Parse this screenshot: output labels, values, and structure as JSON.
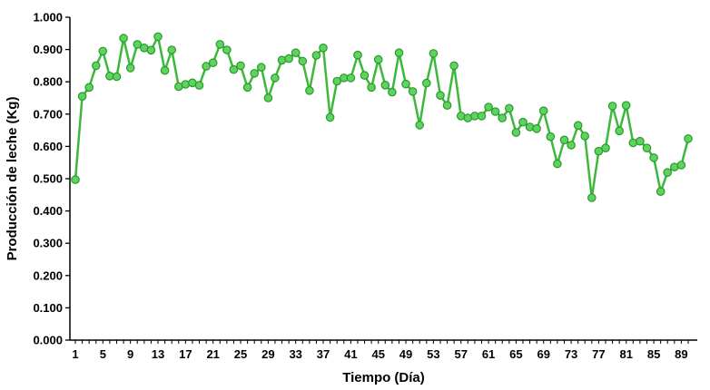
{
  "chart_data": {
    "type": "line",
    "title": "",
    "xlabel": "Tiempo (Día)",
    "ylabel": "Producción de leche (Kg)",
    "xlim": [
      1,
      90
    ],
    "ylim": [
      0,
      1.0
    ],
    "x_ticks": [
      1,
      5,
      9,
      13,
      17,
      21,
      25,
      29,
      33,
      37,
      41,
      45,
      49,
      53,
      57,
      61,
      65,
      69,
      73,
      77,
      81,
      85,
      89
    ],
    "y_ticks": [
      "0.000",
      "0.100",
      "0.200",
      "0.300",
      "0.400",
      "0.500",
      "0.600",
      "0.700",
      "0.800",
      "0.900",
      "1.000"
    ],
    "grid": false,
    "color": "#3cb83c",
    "series": [
      {
        "x": [
          1,
          2,
          3,
          4,
          5,
          6,
          7,
          8,
          9,
          10,
          11,
          12,
          13,
          14,
          15,
          16,
          17,
          18,
          19,
          20,
          21,
          22,
          23,
          24,
          25,
          26,
          27,
          28,
          29,
          30,
          31,
          32,
          33,
          34,
          35,
          36,
          37,
          38,
          39,
          40,
          41,
          42,
          43,
          44,
          45,
          46,
          47,
          48,
          49,
          50,
          51,
          52,
          53,
          54,
          55,
          56,
          57,
          58,
          59,
          60,
          61,
          62,
          63,
          64,
          65,
          66,
          67,
          68,
          69,
          70,
          71,
          72,
          73,
          74,
          75,
          76,
          77,
          78,
          79,
          80,
          81,
          82,
          83,
          84,
          85,
          86,
          87,
          88,
          89,
          90
        ],
        "values": [
          0.497,
          0.755,
          0.783,
          0.85,
          0.895,
          0.818,
          0.816,
          0.935,
          0.843,
          0.916,
          0.905,
          0.898,
          0.94,
          0.835,
          0.899,
          0.785,
          0.792,
          0.797,
          0.789,
          0.848,
          0.859,
          0.916,
          0.899,
          0.838,
          0.85,
          0.783,
          0.826,
          0.845,
          0.75,
          0.812,
          0.867,
          0.872,
          0.89,
          0.864,
          0.773,
          0.882,
          0.905,
          0.69,
          0.802,
          0.812,
          0.812,
          0.883,
          0.82,
          0.783,
          0.869,
          0.79,
          0.768,
          0.89,
          0.793,
          0.77,
          0.666,
          0.796,
          0.888,
          0.758,
          0.727,
          0.85,
          0.694,
          0.688,
          0.694,
          0.694,
          0.722,
          0.708,
          0.688,
          0.718,
          0.643,
          0.675,
          0.66,
          0.655,
          0.71,
          0.63,
          0.546,
          0.62,
          0.604,
          0.665,
          0.632,
          0.441,
          0.585,
          0.595,
          0.725,
          0.648,
          0.727,
          0.611,
          0.616,
          0.595,
          0.565,
          0.46,
          0.519,
          0.536,
          0.542,
          0.624
        ]
      }
    ]
  }
}
